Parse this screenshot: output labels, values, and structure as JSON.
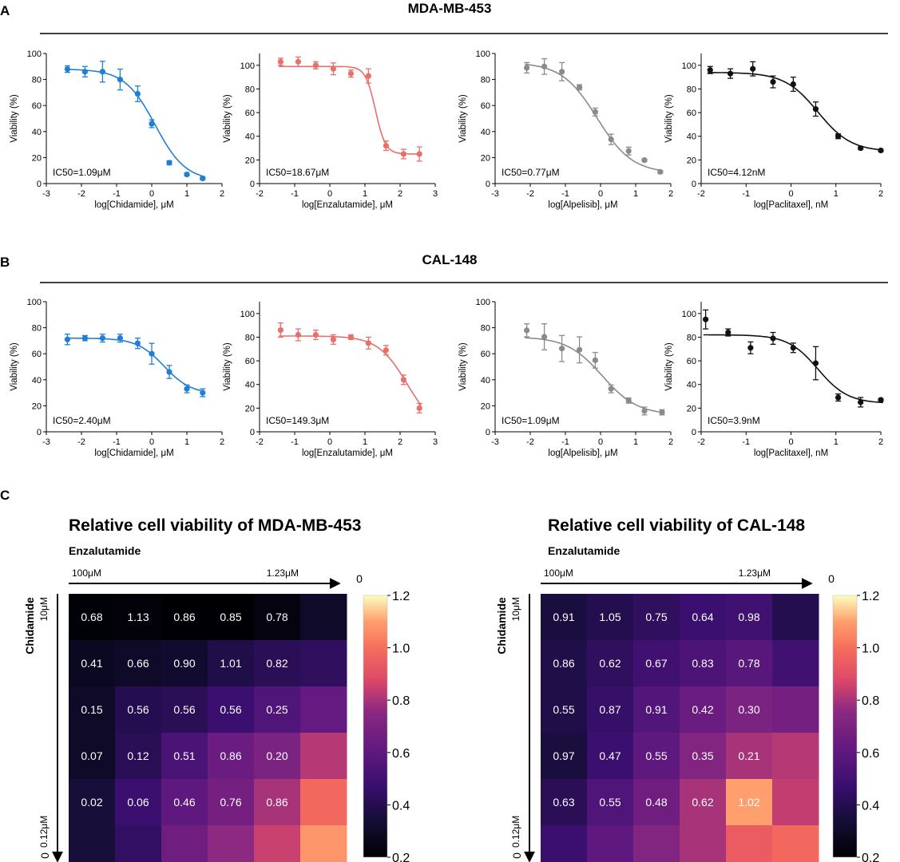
{
  "panel_labels": {
    "a": "A",
    "b": "B",
    "c": "C"
  },
  "section_a_title": "MDA-MB-453",
  "section_b_title": "CAL-148",
  "colors": {
    "chidamide": "#1f7fd6",
    "enzalutamide": "#e8706a",
    "alpelisib": "#8a8a8a",
    "paclitaxel": "#111111"
  },
  "chart_data": [
    {
      "id": "A1",
      "type": "scatter",
      "fit": "sigmoid",
      "series_color": "chidamide",
      "ylabel": "Viability (%)",
      "xlabel": "log[Chidamide], μM",
      "xlim": [
        -3,
        2
      ],
      "ylim": [
        0,
        100
      ],
      "xticks": [
        -3,
        -2,
        -1,
        0,
        1,
        2
      ],
      "yticks": [
        0,
        20,
        40,
        60,
        80,
        100
      ],
      "annotation": "IC50=1.09μM",
      "points": [
        [
          -2.4,
          88,
          2.5
        ],
        [
          -1.9,
          86,
          4
        ],
        [
          -1.4,
          86,
          8
        ],
        [
          -0.9,
          80,
          8
        ],
        [
          -0.4,
          69,
          6
        ],
        [
          0,
          46,
          3
        ],
        [
          0.5,
          16,
          1.5
        ],
        [
          1,
          7,
          1
        ],
        [
          1.45,
          4,
          1
        ]
      ],
      "curve": {
        "top": 88,
        "bottom": 2,
        "x50": 0.1,
        "k": 2.3
      }
    },
    {
      "id": "A2",
      "type": "scatter",
      "fit": "sigmoid",
      "series_color": "enzalutamide",
      "ylabel": "Viability (%)",
      "xlabel": "log[Enzalutamide],  μM",
      "xlim": [
        -2,
        3
      ],
      "ylim": [
        0,
        110
      ],
      "xticks": [
        -2,
        -1,
        0,
        1,
        2,
        3
      ],
      "yticks": [
        0,
        20,
        40,
        60,
        80,
        100
      ],
      "annotation": "IC50=18.67μM",
      "points": [
        [
          -1.4,
          103,
          3
        ],
        [
          -0.9,
          103,
          4
        ],
        [
          -0.4,
          100,
          3
        ],
        [
          0.1,
          97,
          5
        ],
        [
          0.6,
          93,
          3
        ],
        [
          1.1,
          91,
          6
        ],
        [
          1.6,
          32,
          4
        ],
        [
          2.1,
          25,
          4
        ],
        [
          2.55,
          25,
          6
        ]
      ],
      "curve": {
        "top": 99,
        "bottom": 25,
        "x50": 1.3,
        "k": 7
      }
    },
    {
      "id": "A3",
      "type": "scatter",
      "fit": "sigmoid",
      "series_color": "alpelisib",
      "ylabel": "Viability (%)",
      "xlabel": "log[Alpelisib],  μM",
      "xlim": [
        -3,
        2
      ],
      "ylim": [
        0,
        100
      ],
      "xticks": [
        -3,
        -2,
        -1,
        0,
        1,
        2
      ],
      "yticks": [
        0,
        20,
        40,
        60,
        80,
        100
      ],
      "annotation": "IC50=0.77μM",
      "points": [
        [
          -2.1,
          89,
          4
        ],
        [
          -1.6,
          90,
          6
        ],
        [
          -1.1,
          86,
          7
        ],
        [
          -0.6,
          74,
          2
        ],
        [
          -0.15,
          55,
          3
        ],
        [
          0.3,
          34,
          4
        ],
        [
          0.8,
          25,
          3
        ],
        [
          1.25,
          18,
          1
        ],
        [
          1.7,
          9,
          1
        ]
      ],
      "curve": {
        "top": 93,
        "bottom": 8,
        "x50": -0.1,
        "k": 2
      }
    },
    {
      "id": "A4",
      "type": "scatter",
      "fit": "sigmoid",
      "series_color": "paclitaxel",
      "ylabel": "Viability (%)",
      "xlabel": "log[Paclitaxel], nM",
      "xlim": [
        -2,
        2
      ],
      "ylim": [
        0,
        110
      ],
      "xticks": [
        -2,
        -1,
        0,
        1,
        2
      ],
      "yticks": [
        0,
        20,
        40,
        60,
        80,
        100
      ],
      "annotation": "IC50=4.12nM",
      "points": [
        [
          -1.8,
          96,
          3
        ],
        [
          -1.35,
          93,
          4
        ],
        [
          -0.85,
          97,
          6
        ],
        [
          -0.4,
          86,
          5
        ],
        [
          0.05,
          84,
          6
        ],
        [
          0.55,
          63,
          6
        ],
        [
          1.05,
          40,
          2
        ],
        [
          1.55,
          30,
          1
        ],
        [
          2,
          28,
          1
        ]
      ],
      "curve": {
        "top": 94,
        "bottom": 27,
        "x50": 0.6,
        "k": 2.7
      }
    },
    {
      "id": "B1",
      "type": "scatter",
      "fit": "sigmoid",
      "series_color": "chidamide",
      "ylabel": "Viability (%)",
      "xlabel": "log[Chidamide], μM",
      "xlim": [
        -3,
        2
      ],
      "ylim": [
        0,
        100
      ],
      "xticks": [
        -3,
        -2,
        -1,
        0,
        1,
        2
      ],
      "yticks": [
        0,
        20,
        40,
        60,
        80,
        100
      ],
      "annotation": "IC50=2.40μM",
      "points": [
        [
          -2.4,
          71,
          4
        ],
        [
          -1.9,
          72,
          2
        ],
        [
          -1.4,
          72,
          3
        ],
        [
          -0.9,
          72,
          3
        ],
        [
          -0.4,
          68,
          4
        ],
        [
          0,
          60,
          8
        ],
        [
          0.5,
          46,
          5
        ],
        [
          1,
          33,
          3
        ],
        [
          1.45,
          30,
          3
        ]
      ],
      "curve": {
        "top": 72,
        "bottom": 29,
        "x50": 0.35,
        "k": 2.6
      }
    },
    {
      "id": "B2",
      "type": "scatter",
      "fit": "sigmoid",
      "series_color": "enzalutamide",
      "ylabel": "Viability (%)",
      "xlabel": "log[Enzalutamide],  μM",
      "xlim": [
        -2,
        3
      ],
      "ylim": [
        0,
        110
      ],
      "xticks": [
        -2,
        -1,
        0,
        1,
        2,
        3
      ],
      "yticks": [
        0,
        20,
        40,
        60,
        80,
        100
      ],
      "annotation": "IC50=149.3μM",
      "points": [
        [
          -1.4,
          86,
          6
        ],
        [
          -0.9,
          82,
          5
        ],
        [
          -0.4,
          82,
          4
        ],
        [
          0.1,
          78,
          4
        ],
        [
          0.6,
          80,
          2
        ],
        [
          1.1,
          75,
          5
        ],
        [
          1.6,
          69,
          4
        ],
        [
          2.1,
          44,
          4
        ],
        [
          2.55,
          20,
          4
        ]
      ],
      "curve": {
        "top": 81,
        "bottom": 0,
        "x50": 2.2,
        "k": 2.4
      }
    },
    {
      "id": "B3",
      "type": "scatter",
      "fit": "sigmoid",
      "series_color": "alpelisib",
      "ylabel": "Viability (%)",
      "xlabel": "log[Alpelisib],  μM",
      "xlim": [
        -3,
        2
      ],
      "ylim": [
        0,
        100
      ],
      "xticks": [
        -3,
        -2,
        -1,
        0,
        1,
        2
      ],
      "yticks": [
        0,
        20,
        40,
        60,
        80,
        100
      ],
      "annotation": "IC50=1.09μM",
      "points": [
        [
          -2.1,
          78,
          5
        ],
        [
          -1.6,
          73,
          10
        ],
        [
          -1.1,
          64,
          10
        ],
        [
          -0.6,
          63,
          10
        ],
        [
          -0.15,
          55,
          6
        ],
        [
          0.3,
          33,
          3
        ],
        [
          0.8,
          24,
          2
        ],
        [
          1.25,
          16,
          3
        ],
        [
          1.75,
          15,
          2
        ]
      ],
      "curve": {
        "top": 73,
        "bottom": 13,
        "x50": 0.05,
        "k": 2
      }
    },
    {
      "id": "B4",
      "type": "scatter",
      "fit": "sigmoid",
      "series_color": "paclitaxel",
      "ylabel": "Viability (%)",
      "xlabel": "log[Paclitaxel], nM",
      "xlim": [
        -2,
        2
      ],
      "ylim": [
        0,
        110
      ],
      "xticks": [
        -2,
        -1,
        0,
        1,
        2
      ],
      "yticks": [
        0,
        20,
        40,
        60,
        80,
        100
      ],
      "annotation": "IC50=3.9nM",
      "points": [
        [
          -1.9,
          95,
          8
        ],
        [
          -1.4,
          84,
          3
        ],
        [
          -0.9,
          71,
          5
        ],
        [
          -0.4,
          79,
          5
        ],
        [
          0.05,
          71,
          4
        ],
        [
          0.55,
          58,
          14
        ],
        [
          1.05,
          29,
          3
        ],
        [
          1.55,
          25,
          4
        ],
        [
          2,
          27,
          1
        ]
      ],
      "curve": {
        "top": 82,
        "bottom": 24,
        "x50": 0.6,
        "k": 3
      }
    },
    {
      "id": "C1",
      "type": "heatmap",
      "title": "Relative cell viability of MDA-MB-453",
      "col_label": "Enzalutamide",
      "col_start": "100μM",
      "col_end": "1.23μM",
      "col_zero": "0",
      "row_label": "Chidamide",
      "row_start": "10μM",
      "row_end": "0.12μM",
      "row_zero": "0",
      "vmin": 0.2,
      "vmax": 1.2,
      "colorbar_ticks": [
        "0.2",
        "0.4",
        "0.6",
        "0.8",
        "1.0",
        "1.2"
      ],
      "labels": [
        [
          "0.68",
          "1.13",
          "0.86",
          "0.85",
          "0.78",
          ""
        ],
        [
          "0.41",
          "0.66",
          "0.90",
          "1.01",
          "0.82",
          ""
        ],
        [
          "0.15",
          "0.56",
          "0.56",
          "0.56",
          "0.25",
          ""
        ],
        [
          "0.07",
          "0.12",
          "0.51",
          "0.86",
          "0.20",
          ""
        ],
        [
          "0.02",
          "0.06",
          "0.46",
          "0.76",
          "0.86",
          ""
        ],
        [
          "",
          "",
          "",
          "",
          "",
          ""
        ]
      ],
      "colors": [
        [
          0.21,
          0.22,
          0.2,
          0.2,
          0.23,
          0.3
        ],
        [
          0.28,
          0.3,
          0.32,
          0.38,
          0.42,
          0.44
        ],
        [
          0.3,
          0.4,
          0.42,
          0.48,
          0.55,
          0.62
        ],
        [
          0.3,
          0.42,
          0.53,
          0.64,
          0.7,
          0.82
        ],
        [
          0.35,
          0.48,
          0.6,
          0.68,
          0.8,
          0.98
        ],
        [
          0.35,
          0.45,
          0.66,
          0.76,
          0.85,
          1.08
        ]
      ]
    },
    {
      "id": "C2",
      "type": "heatmap",
      "title": "Relative cell viability of CAL-148",
      "col_label": "Enzalutamide",
      "col_start": "100μM",
      "col_end": "1.23μM",
      "col_zero": "0",
      "row_label": "Chidamide",
      "row_start": "10μM",
      "row_end": "0.12μM",
      "row_zero": "0",
      "vmin": 0.2,
      "vmax": 1.2,
      "colorbar_ticks": [
        "0.2",
        "0.4",
        "0.6",
        "0.8",
        "1.0",
        "1.2"
      ],
      "labels": [
        [
          "0.91",
          "1.05",
          "0.75",
          "0.64",
          "0.98",
          ""
        ],
        [
          "0.86",
          "0.62",
          "0.67",
          "0.83",
          "0.78",
          ""
        ],
        [
          "0.55",
          "0.87",
          "0.91",
          "0.42",
          "0.30",
          ""
        ],
        [
          "0.97",
          "0.47",
          "0.55",
          "0.35",
          "0.21",
          ""
        ],
        [
          "0.63",
          "0.55",
          "0.48",
          "0.62",
          "1.02",
          ""
        ],
        [
          "",
          "",
          "",
          "",
          "",
          ""
        ]
      ],
      "colors": [
        [
          0.36,
          0.4,
          0.44,
          0.48,
          0.5,
          0.4
        ],
        [
          0.38,
          0.44,
          0.5,
          0.54,
          0.58,
          0.5
        ],
        [
          0.38,
          0.46,
          0.56,
          0.64,
          0.7,
          0.68
        ],
        [
          0.36,
          0.48,
          0.6,
          0.72,
          0.8,
          0.82
        ],
        [
          0.42,
          0.55,
          0.66,
          0.8,
          1.1,
          0.84
        ],
        [
          0.48,
          0.6,
          0.72,
          0.8,
          0.94,
          0.98
        ]
      ]
    }
  ]
}
